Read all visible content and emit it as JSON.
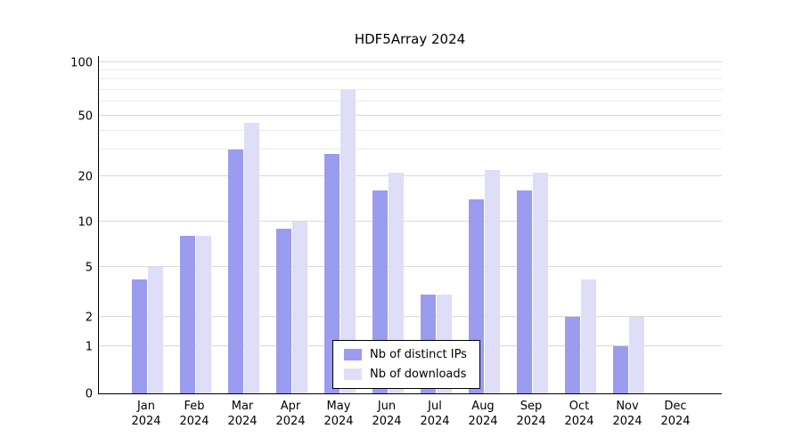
{
  "chart_data": {
    "type": "bar",
    "title": "HDF5Array 2024",
    "yscale": "log",
    "ylim": [
      0,
      100
    ],
    "grid": "horizontal",
    "legend_position": "bottom-center",
    "yticks": [
      100,
      50,
      20,
      10,
      5,
      2,
      1,
      0
    ],
    "minor_gridlines": [
      30,
      40,
      60,
      70,
      80,
      90
    ],
    "categories": [
      {
        "month": "Jan",
        "year": "2024"
      },
      {
        "month": "Feb",
        "year": "2024"
      },
      {
        "month": "Mar",
        "year": "2024"
      },
      {
        "month": "Apr",
        "year": "2024"
      },
      {
        "month": "May",
        "year": "2024"
      },
      {
        "month": "Jun",
        "year": "2024"
      },
      {
        "month": "Jul",
        "year": "2024"
      },
      {
        "month": "Aug",
        "year": "2024"
      },
      {
        "month": "Sep",
        "year": "2024"
      },
      {
        "month": "Oct",
        "year": "2024"
      },
      {
        "month": "Nov",
        "year": "2024"
      },
      {
        "month": "Dec",
        "year": "2024"
      }
    ],
    "series": [
      {
        "name": "Nb of distinct IPs",
        "color": "#9b9bef",
        "values": [
          4,
          8,
          30,
          9,
          28,
          16,
          3,
          14,
          16,
          2,
          1,
          0
        ]
      },
      {
        "name": "Nb of downloads",
        "color": "#dedef9",
        "values": [
          5,
          8,
          45,
          10,
          70,
          21,
          3,
          22,
          21,
          4,
          2,
          0
        ]
      }
    ]
  }
}
